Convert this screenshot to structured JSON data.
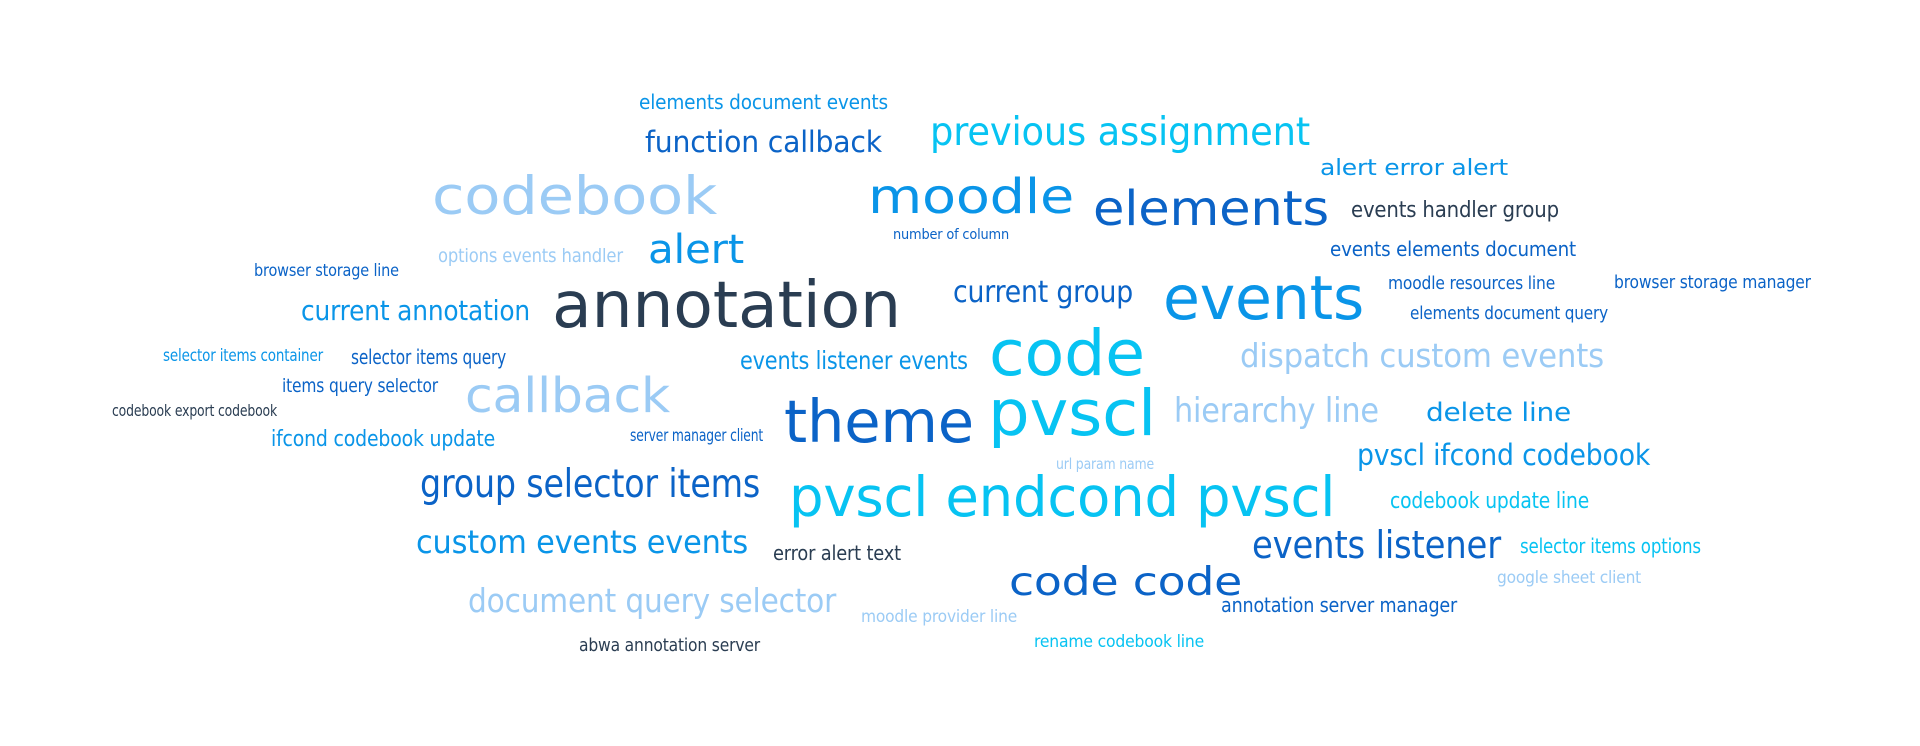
{
  "palette": {
    "dark": "#2a3d52",
    "navy": "#0b63c7",
    "blue": "#0a95e8",
    "cyan": "#07c3f2",
    "light": "#9bcbf5"
  },
  "words": [
    {
      "text": "elements document events",
      "color": "#0a95e8"
    },
    {
      "text": "function callback",
      "color": "#0b63c7"
    },
    {
      "text": "previous assignment",
      "color": "#07c3f2"
    },
    {
      "text": "alert error alert",
      "color": "#0a95e8"
    },
    {
      "text": "codebook",
      "color": "#9bcbf5"
    },
    {
      "text": "moodle",
      "color": "#0a95e8"
    },
    {
      "text": "elements",
      "color": "#0b63c7"
    },
    {
      "text": "events handler group",
      "color": "#2a3d52"
    },
    {
      "text": "number of column",
      "color": "#0b63c7"
    },
    {
      "text": "alert",
      "color": "#0a95e8"
    },
    {
      "text": "options events handler",
      "color": "#9bcbf5"
    },
    {
      "text": "events elements document",
      "color": "#0b63c7"
    },
    {
      "text": "browser storage line",
      "color": "#0b63c7"
    },
    {
      "text": "moodle resources line",
      "color": "#0b63c7"
    },
    {
      "text": "browser storage manager",
      "color": "#0b63c7"
    },
    {
      "text": "current annotation",
      "color": "#0a95e8"
    },
    {
      "text": "annotation",
      "color": "#2a3d52"
    },
    {
      "text": "current group",
      "color": "#0b63c7"
    },
    {
      "text": "events",
      "color": "#0a95e8"
    },
    {
      "text": "elements document query",
      "color": "#0b63c7"
    },
    {
      "text": "code",
      "color": "#07c3f2"
    },
    {
      "text": "selector items container",
      "color": "#0a95e8"
    },
    {
      "text": "selector items query",
      "color": "#0b63c7"
    },
    {
      "text": "events listener events",
      "color": "#0a95e8"
    },
    {
      "text": "dispatch custom events",
      "color": "#9bcbf5"
    },
    {
      "text": "items query selector",
      "color": "#0b63c7"
    },
    {
      "text": "callback",
      "color": "#9bcbf5"
    },
    {
      "text": "codebook export codebook",
      "color": "#2a3d52"
    },
    {
      "text": "theme",
      "color": "#0b63c7"
    },
    {
      "text": "pvscl",
      "color": "#07c3f2"
    },
    {
      "text": "hierarchy line",
      "color": "#9bcbf5"
    },
    {
      "text": "delete line",
      "color": "#0a95e8"
    },
    {
      "text": "ifcond codebook update",
      "color": "#0a95e8"
    },
    {
      "text": "server manager client",
      "color": "#0b63c7"
    },
    {
      "text": "pvscl ifcond codebook",
      "color": "#0a95e8"
    },
    {
      "text": "url param name",
      "color": "#9bcbf5"
    },
    {
      "text": "group selector items",
      "color": "#0b63c7"
    },
    {
      "text": "pvscl endcond pvscl",
      "color": "#07c3f2"
    },
    {
      "text": "codebook update line",
      "color": "#07c3f2"
    },
    {
      "text": "custom events events",
      "color": "#0a95e8"
    },
    {
      "text": "error alert text",
      "color": "#2a3d52"
    },
    {
      "text": "events listener",
      "color": "#0b63c7"
    },
    {
      "text": "selector items options",
      "color": "#07c3f2"
    },
    {
      "text": "google sheet client",
      "color": "#9bcbf5"
    },
    {
      "text": "code code",
      "color": "#0b63c7"
    },
    {
      "text": "document query selector",
      "color": "#9bcbf5"
    },
    {
      "text": "annotation server manager",
      "color": "#0b63c7"
    },
    {
      "text": "moodle provider line",
      "color": "#9bcbf5"
    },
    {
      "text": "abwa annotation server",
      "color": "#2a3d52"
    },
    {
      "text": "rename codebook line",
      "color": "#07c3f2"
    }
  ]
}
